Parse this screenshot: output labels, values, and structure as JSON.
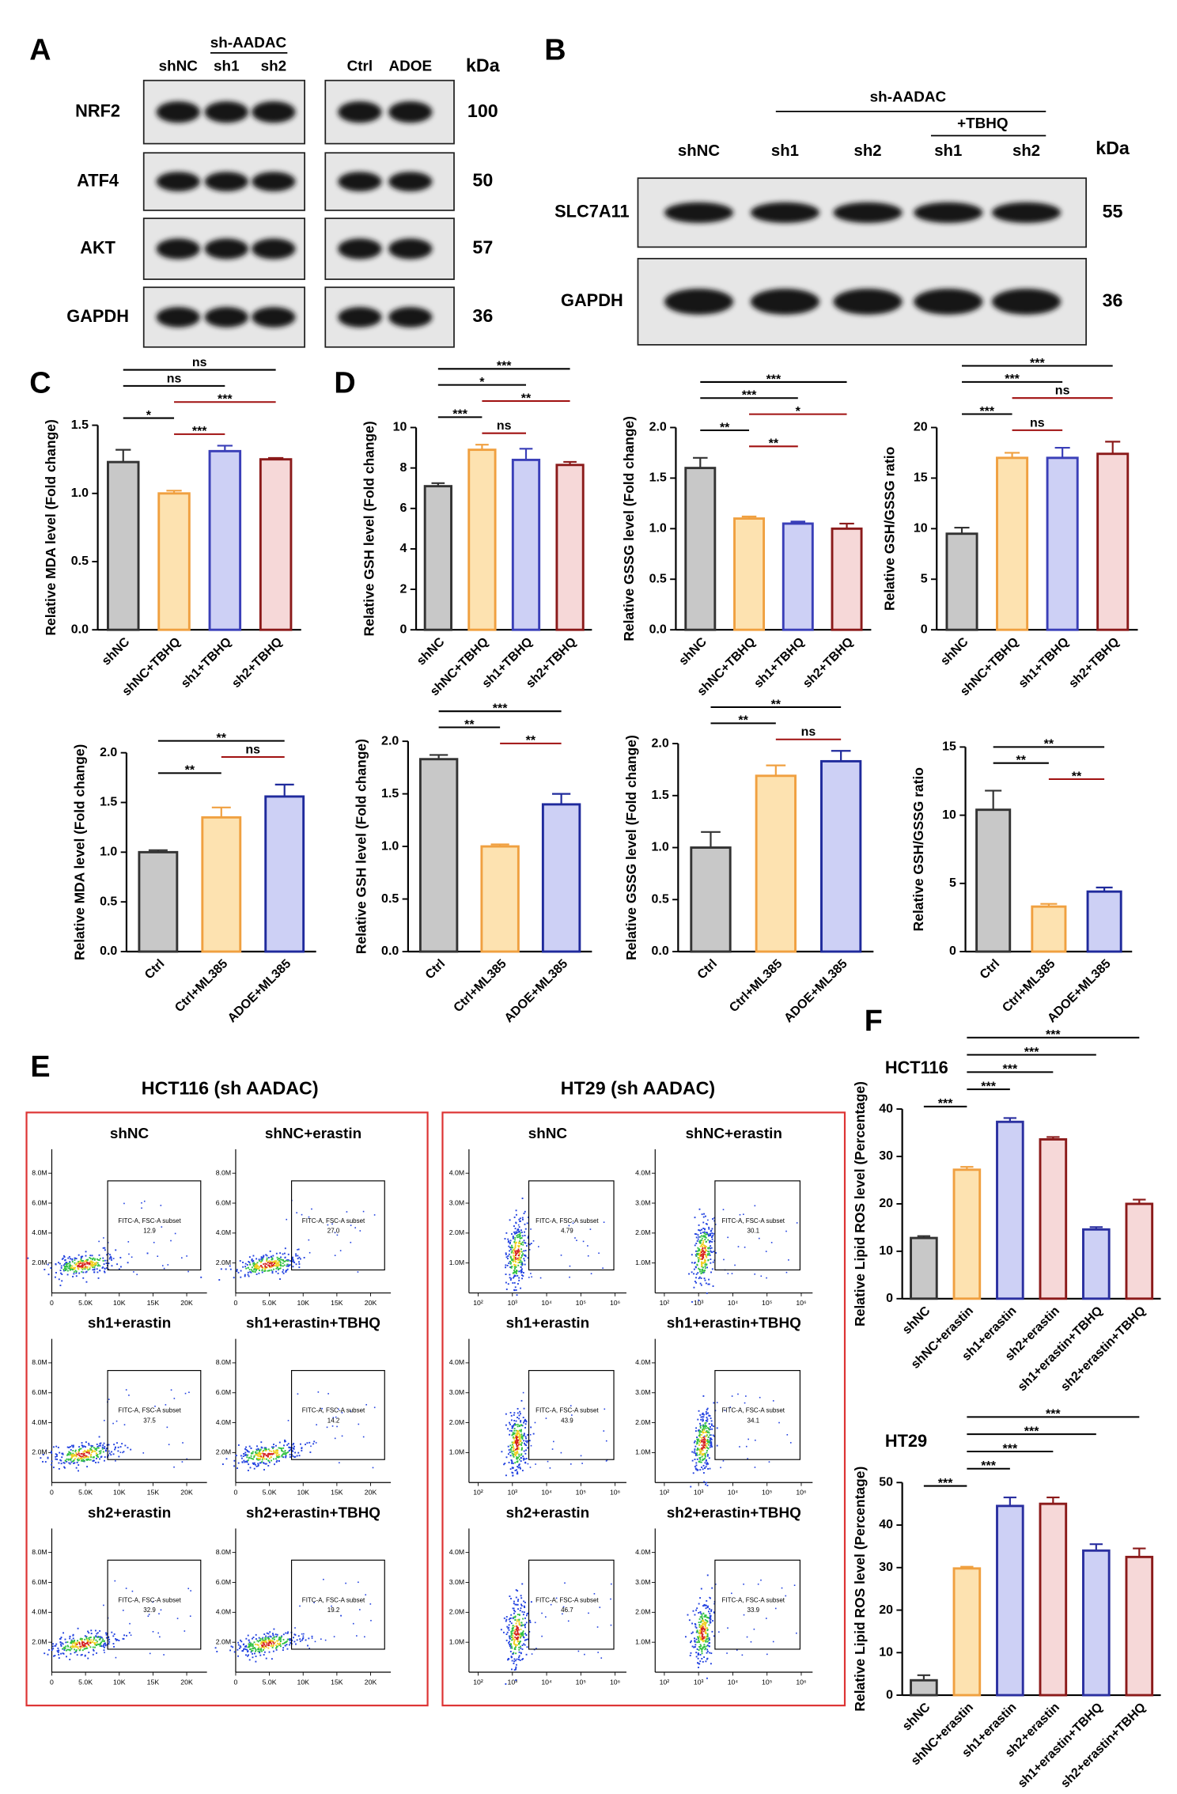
{
  "panel_labels": [
    "A",
    "B",
    "C",
    "D",
    "E",
    "F"
  ],
  "panel_a": {
    "group_left": "sh-AADAC",
    "lanes_left": [
      "shNC",
      "sh1",
      "sh2"
    ],
    "lanes_right": [
      "Ctrl",
      "ADOE"
    ],
    "unit": "kDa",
    "rows": [
      {
        "name": "NRF2",
        "kda": 100
      },
      {
        "name": "ATF4",
        "kda": 50
      },
      {
        "name": "AKT",
        "kda": 57
      },
      {
        "name": "GAPDH",
        "kda": 36
      }
    ]
  },
  "panel_b": {
    "group": "sh-AADAC",
    "subgroup": "+TBHQ",
    "lanes": [
      "shNC",
      "sh1",
      "sh2",
      "sh1",
      "sh2"
    ],
    "unit": "kDa",
    "rows": [
      {
        "name": "SLC7A11",
        "kda": 55
      },
      {
        "name": "GAPDH",
        "kda": 36
      }
    ]
  },
  "chart_data": [
    {
      "type": "bar",
      "ylabel": "Relative MDA level (Fold change)",
      "categories": [
        "shNC",
        "shNC+TBHQ",
        "sh1+TBHQ",
        "sh2+TBHQ"
      ],
      "values": [
        1.23,
        1.0,
        1.31,
        1.25
      ],
      "errors": [
        0.09,
        0.02,
        0.04,
        0.01
      ],
      "colors": [
        "#c8c8c8",
        "#fde2b0",
        "#cdd0f5",
        "#f6d8d8"
      ],
      "edge_colors": [
        "#333333",
        "#f0a040",
        "#3a3fb8",
        "#8b1a1a"
      ],
      "ylim": [
        0,
        1.5
      ],
      "yticks": [
        {
          "value": 0,
          "label": "0.0"
        },
        {
          "value": 0.5,
          "label": "0.5"
        },
        {
          "value": 1,
          "label": "1.0"
        },
        {
          "value": 1.5,
          "label": "1.5"
        }
      ],
      "comparisons": [
        {
          "from": "shNC",
          "to": "sh2+TBHQ",
          "label": "ns",
          "color": "#000000"
        },
        {
          "from": "shNC",
          "to": "sh1+TBHQ",
          "label": "ns",
          "color": "#000000"
        },
        {
          "from": "shNC+TBHQ",
          "to": "sh2+TBHQ",
          "label": "***",
          "color": "#a01010"
        },
        {
          "from": "shNC",
          "to": "shNC+TBHQ",
          "label": "*",
          "color": "#000000"
        },
        {
          "from": "shNC+TBHQ",
          "to": "sh1+TBHQ",
          "label": "***",
          "color": "#a01010"
        }
      ]
    },
    {
      "type": "bar",
      "ylabel": "Relative GSH level (Fold change)",
      "categories": [
        "shNC",
        "shNC+TBHQ",
        "sh1+TBHQ",
        "sh2+TBHQ"
      ],
      "values": [
        7.1,
        8.9,
        8.4,
        8.15
      ],
      "errors": [
        0.15,
        0.25,
        0.55,
        0.15
      ],
      "colors": [
        "#c8c8c8",
        "#fde2b0",
        "#cdd0f5",
        "#f6d8d8"
      ],
      "edge_colors": [
        "#333333",
        "#f0a040",
        "#3a3fb8",
        "#8b1a1a"
      ],
      "ylim": [
        0,
        10
      ],
      "yticks": [
        0,
        2,
        4,
        6,
        8,
        10
      ],
      "comparisons": [
        {
          "from": "shNC",
          "to": "sh2+TBHQ",
          "label": "***",
          "color": "#000000"
        },
        {
          "from": "shNC",
          "to": "sh1+TBHQ",
          "label": "*",
          "color": "#000000"
        },
        {
          "from": "shNC+TBHQ",
          "to": "sh2+TBHQ",
          "label": "**",
          "color": "#a01010"
        },
        {
          "from": "shNC",
          "to": "shNC+TBHQ",
          "label": "***",
          "color": "#000000"
        },
        {
          "from": "shNC+TBHQ",
          "to": "sh1+TBHQ",
          "label": "ns",
          "color": "#a01010"
        }
      ]
    },
    {
      "type": "bar",
      "ylabel": "Relative GSSG level (Fold change)",
      "categories": [
        "shNC",
        "shNC+TBHQ",
        "sh1+TBHQ",
        "sh2+TBHQ"
      ],
      "values": [
        1.6,
        1.1,
        1.05,
        1.0
      ],
      "errors": [
        0.1,
        0.02,
        0.02,
        0.05
      ],
      "colors": [
        "#c8c8c8",
        "#fde2b0",
        "#cdd0f5",
        "#f6d8d8"
      ],
      "edge_colors": [
        "#333333",
        "#f0a040",
        "#3a3fb8",
        "#8b1a1a"
      ],
      "ylim": [
        0,
        2
      ],
      "yticks": [
        {
          "value": 0,
          "label": "0.0"
        },
        {
          "value": 0.5,
          "label": "0.5"
        },
        {
          "value": 1,
          "label": "1.0"
        },
        {
          "value": 1.5,
          "label": "1.5"
        },
        {
          "value": 2,
          "label": "2.0"
        }
      ],
      "comparisons": [
        {
          "from": "shNC",
          "to": "sh2+TBHQ",
          "label": "***",
          "color": "#000000"
        },
        {
          "from": "shNC",
          "to": "sh1+TBHQ",
          "label": "***",
          "color": "#000000"
        },
        {
          "from": "shNC+TBHQ",
          "to": "sh2+TBHQ",
          "label": "*",
          "color": "#a01010"
        },
        {
          "from": "shNC",
          "to": "shNC+TBHQ",
          "label": "**",
          "color": "#000000"
        },
        {
          "from": "shNC+TBHQ",
          "to": "sh1+TBHQ",
          "label": "**",
          "color": "#a01010"
        }
      ]
    },
    {
      "type": "bar",
      "ylabel": "Relative GSH/GSSG ratio",
      "categories": [
        "shNC",
        "shNC+TBHQ",
        "sh1+TBHQ",
        "sh2+TBHQ"
      ],
      "values": [
        9.5,
        17.0,
        17.0,
        17.4
      ],
      "errors": [
        0.6,
        0.5,
        1.0,
        1.2
      ],
      "colors": [
        "#c8c8c8",
        "#fde2b0",
        "#cdd0f5",
        "#f6d8d8"
      ],
      "edge_colors": [
        "#333333",
        "#f0a040",
        "#3a3fb8",
        "#8b1a1a"
      ],
      "ylim": [
        0,
        20
      ],
      "yticks": [
        0,
        5,
        10,
        15,
        20
      ],
      "comparisons": [
        {
          "from": "shNC",
          "to": "sh2+TBHQ",
          "label": "***",
          "color": "#000000"
        },
        {
          "from": "shNC",
          "to": "sh1+TBHQ",
          "label": "***",
          "color": "#000000"
        },
        {
          "from": "shNC+TBHQ",
          "to": "sh2+TBHQ",
          "label": "ns",
          "color": "#a01010"
        },
        {
          "from": "shNC",
          "to": "shNC+TBHQ",
          "label": "***",
          "color": "#000000"
        },
        {
          "from": "shNC+TBHQ",
          "to": "sh1+TBHQ",
          "label": "ns",
          "color": "#a01010"
        }
      ]
    },
    {
      "type": "bar",
      "ylabel": "Relative MDA level (Fold change)",
      "categories": [
        "Ctrl",
        "Ctrl+ML385",
        "ADOE+ML385"
      ],
      "values": [
        1.0,
        1.35,
        1.56
      ],
      "errors": [
        0.02,
        0.1,
        0.12
      ],
      "colors": [
        "#c8c8c8",
        "#fde2b0",
        "#cdd0f5"
      ],
      "edge_colors": [
        "#333333",
        "#f0a040",
        "#1f2a9c"
      ],
      "ylim": [
        0,
        2
      ],
      "yticks": [
        {
          "value": 0,
          "label": "0.0"
        },
        {
          "value": 0.5,
          "label": "0.5"
        },
        {
          "value": 1,
          "label": "1.0"
        },
        {
          "value": 1.5,
          "label": "1.5"
        },
        {
          "value": 2,
          "label": "2.0"
        }
      ],
      "comparisons": [
        {
          "from": "Ctrl",
          "to": "ADOE+ML385",
          "label": "**",
          "color": "#000000"
        },
        {
          "from": "Ctrl+ML385",
          "to": "ADOE+ML385",
          "label": "ns",
          "color": "#a01010"
        },
        {
          "from": "Ctrl",
          "to": "Ctrl+ML385",
          "label": "**",
          "color": "#000000"
        }
      ]
    },
    {
      "type": "bar",
      "ylabel": "Relative GSH level (Fold change)",
      "categories": [
        "Ctrl",
        "Ctrl+ML385",
        "ADOE+ML385"
      ],
      "values": [
        1.83,
        1.0,
        1.4
      ],
      "errors": [
        0.04,
        0.02,
        0.1
      ],
      "colors": [
        "#c8c8c8",
        "#fde2b0",
        "#cdd0f5"
      ],
      "edge_colors": [
        "#333333",
        "#f0a040",
        "#1f2a9c"
      ],
      "ylim": [
        0,
        2
      ],
      "yticks": [
        {
          "value": 0,
          "label": "0.0"
        },
        {
          "value": 0.5,
          "label": "0.5"
        },
        {
          "value": 1,
          "label": "1.0"
        },
        {
          "value": 1.5,
          "label": "1.5"
        },
        {
          "value": 2,
          "label": "2.0"
        }
      ],
      "comparisons": [
        {
          "from": "Ctrl",
          "to": "ADOE+ML385",
          "label": "***",
          "color": "#000000"
        },
        {
          "from": "Ctrl",
          "to": "Ctrl+ML385",
          "label": "**",
          "color": "#000000"
        },
        {
          "from": "Ctrl+ML385",
          "to": "ADOE+ML385",
          "label": "**",
          "color": "#a01010"
        }
      ]
    },
    {
      "type": "bar",
      "ylabel": "Relative GSSG level (Fold change)",
      "categories": [
        "Ctrl",
        "Ctrl+ML385",
        "ADOE+ML385"
      ],
      "values": [
        1.0,
        1.69,
        1.83
      ],
      "errors": [
        0.15,
        0.1,
        0.1
      ],
      "colors": [
        "#c8c8c8",
        "#fde2b0",
        "#cdd0f5"
      ],
      "edge_colors": [
        "#333333",
        "#f0a040",
        "#1f2a9c"
      ],
      "ylim": [
        0,
        2
      ],
      "yticks": [
        {
          "value": 0,
          "label": "0.0"
        },
        {
          "value": 0.5,
          "label": "0.5"
        },
        {
          "value": 1,
          "label": "1.0"
        },
        {
          "value": 1.5,
          "label": "1.5"
        },
        {
          "value": 2,
          "label": "2.0"
        }
      ],
      "comparisons": [
        {
          "from": "Ctrl",
          "to": "ADOE+ML385",
          "label": "**",
          "color": "#000000"
        },
        {
          "from": "Ctrl",
          "to": "Ctrl+ML385",
          "label": "**",
          "color": "#000000"
        },
        {
          "from": "Ctrl+ML385",
          "to": "ADOE+ML385",
          "label": "ns",
          "color": "#a01010"
        }
      ]
    },
    {
      "type": "bar",
      "ylabel": "Relative GSH/GSSG ratio",
      "categories": [
        "Ctrl",
        "Ctrl+ML385",
        "ADOE+ML385"
      ],
      "values": [
        10.4,
        3.3,
        4.4
      ],
      "errors": [
        1.4,
        0.2,
        0.3
      ],
      "colors": [
        "#c8c8c8",
        "#fde2b0",
        "#cdd0f5"
      ],
      "edge_colors": [
        "#333333",
        "#f0a040",
        "#1f2a9c"
      ],
      "ylim": [
        0,
        15
      ],
      "yticks": [
        0,
        5,
        10,
        15
      ],
      "comparisons": [
        {
          "from": "Ctrl",
          "to": "ADOE+ML385",
          "label": "**",
          "color": "#000000"
        },
        {
          "from": "Ctrl",
          "to": "Ctrl+ML385",
          "label": "**",
          "color": "#000000"
        },
        {
          "from": "Ctrl+ML385",
          "to": "ADOE+ML385",
          "label": "**",
          "color": "#a01010"
        }
      ]
    },
    {
      "type": "bar",
      "subtitle": "HCT116",
      "ylabel": "Relative Lipid ROS level (Percentage)",
      "categories": [
        "shNC",
        "shNC+erastin",
        "sh1+erastin",
        "sh2+erastin",
        "sh1+erastin+TBHQ",
        "sh2+erastin+TBHQ"
      ],
      "values": [
        12.8,
        27.2,
        37.3,
        33.6,
        14.6,
        20.0
      ],
      "errors": [
        0.4,
        0.6,
        0.8,
        0.5,
        0.5,
        0.9
      ],
      "colors": [
        "#c8c8c8",
        "#fde2b0",
        "#cdd0f5",
        "#f6d8d8",
        "#cdd0f5",
        "#f6d8d8"
      ],
      "edge_colors": [
        "#333333",
        "#f0a040",
        "#2a2fa0",
        "#8b1a1a",
        "#2a2fa0",
        "#8b1a1a"
      ],
      "ylim": [
        0,
        40
      ],
      "yticks": [
        0,
        10,
        20,
        30,
        40
      ],
      "comparisons": [
        {
          "from": "shNC+erastin",
          "to": "sh2+erastin+TBHQ",
          "label": "***",
          "color": "#000000"
        },
        {
          "from": "shNC+erastin",
          "to": "sh1+erastin+TBHQ",
          "label": "***",
          "color": "#000000"
        },
        {
          "from": "shNC+erastin",
          "to": "sh2+erastin",
          "label": "***",
          "color": "#000000"
        },
        {
          "from": "shNC+erastin",
          "to": "sh1+erastin",
          "label": "***",
          "color": "#000000"
        },
        {
          "from": "shNC",
          "to": "shNC+erastin",
          "label": "***",
          "color": "#000000"
        }
      ]
    },
    {
      "type": "bar",
      "subtitle": "HT29",
      "ylabel": "Relative Lipid ROS level (Percentage)",
      "categories": [
        "shNC",
        "shNC+erastin",
        "sh1+erastin",
        "sh2+erastin",
        "sh1+erastin+TBHQ",
        "sh2+erastin+TBHQ"
      ],
      "values": [
        3.5,
        29.8,
        44.5,
        45.0,
        34.0,
        32.5
      ],
      "errors": [
        1.2,
        0.4,
        2.0,
        1.5,
        1.5,
        2.0
      ],
      "colors": [
        "#c8c8c8",
        "#fde2b0",
        "#cdd0f5",
        "#f6d8d8",
        "#cdd0f5",
        "#f6d8d8"
      ],
      "edge_colors": [
        "#333333",
        "#f0a040",
        "#2a2fa0",
        "#8b1a1a",
        "#2a2fa0",
        "#8b1a1a"
      ],
      "ylim": [
        0,
        50
      ],
      "yticks": [
        0,
        10,
        20,
        30,
        40,
        50
      ],
      "comparisons": [
        {
          "from": "shNC+erastin",
          "to": "sh2+erastin+TBHQ",
          "label": "***",
          "color": "#000000"
        },
        {
          "from": "shNC+erastin",
          "to": "sh1+erastin+TBHQ",
          "label": "***",
          "color": "#000000"
        },
        {
          "from": "shNC+erastin",
          "to": "sh2+erastin",
          "label": "***",
          "color": "#000000"
        },
        {
          "from": "shNC+erastin",
          "to": "sh1+erastin",
          "label": "***",
          "color": "#000000"
        },
        {
          "from": "shNC",
          "to": "shNC+erastin",
          "label": "***",
          "color": "#000000"
        }
      ]
    }
  ],
  "panel_e": {
    "gate_label": "FITC-A, FSC-A subset",
    "groups": [
      {
        "title": "HCT116 (sh AADAC)",
        "xticks": [
          "0",
          "5.0K",
          "10K",
          "15K",
          "20K"
        ],
        "yticks": [
          "2.0M",
          "4.0M",
          "6.0M",
          "8.0M"
        ],
        "plots": [
          {
            "title": "shNC",
            "percent": "12.9"
          },
          {
            "title": "shNC+erastin",
            "percent": "27.0"
          },
          {
            "title": "sh1+erastin",
            "percent": "37.5"
          },
          {
            "title": "sh1+erastin+TBHQ",
            "percent": "14.2"
          },
          {
            "title": "sh2+erastin",
            "percent": "32.9"
          },
          {
            "title": "sh2+erastin+TBHQ",
            "percent": "19.2"
          }
        ]
      },
      {
        "title": "HT29 (sh AADAC)",
        "xticks": [
          "10²",
          "10³",
          "10⁴",
          "10⁵",
          "10⁶"
        ],
        "yticks": [
          "1.0M",
          "2.0M",
          "3.0M",
          "4.0M"
        ],
        "plots": [
          {
            "title": "shNC",
            "percent": "4.79"
          },
          {
            "title": "shNC+erastin",
            "percent": "30.1"
          },
          {
            "title": "sh1+erastin",
            "percent": "43.9"
          },
          {
            "title": "sh1+erastin+TBHQ",
            "percent": "34.1"
          },
          {
            "title": "sh2+erastin",
            "percent": "46.7"
          },
          {
            "title": "sh2+erastin+TBHQ",
            "percent": "33.9"
          }
        ]
      }
    ]
  }
}
